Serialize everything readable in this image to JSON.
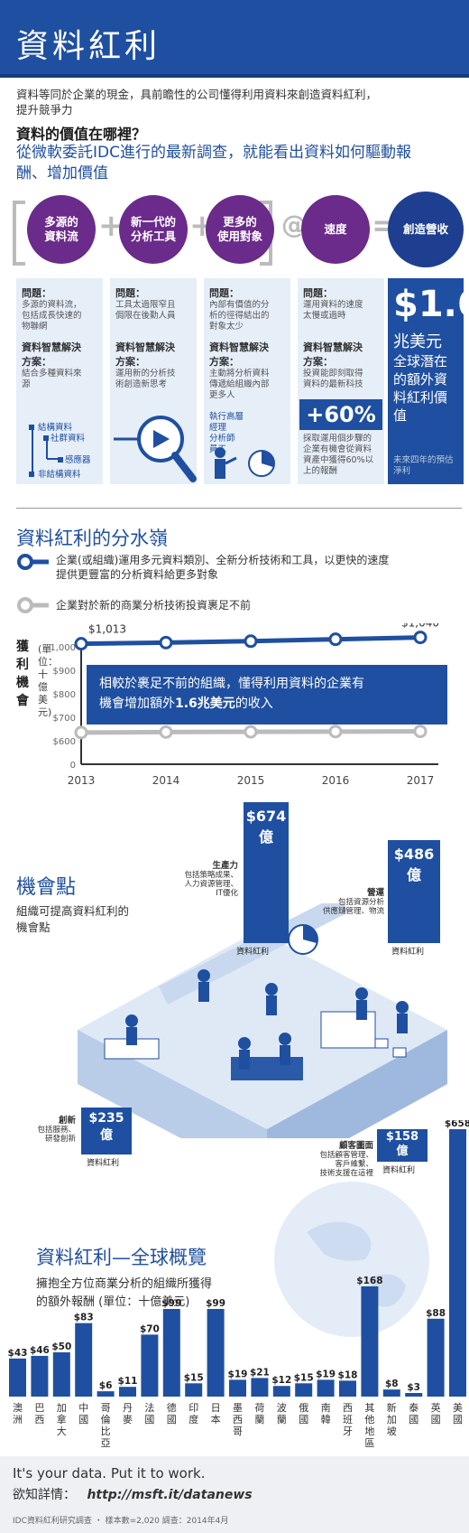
{
  "header": {
    "title": "資料紅利"
  },
  "intro": {
    "line1": "資料等同於企業的現金，具前瞻性的公司懂得利用資料來創造資料紅利，",
    "line2": "提升競爭力",
    "question": "資料的價值在哪裡？",
    "sub1": "從微軟委託IDC進行的最新調查，就能看出資料如何驅動報",
    "sub2": "酬、增加價值"
  },
  "equation": {
    "circles": [
      {
        "l1": "多源的",
        "l2": "資料流"
      },
      {
        "l1": "新一代的",
        "l2": "分析工具"
      },
      {
        "l1": "更多的",
        "l2": "使用對象"
      },
      {
        "l1": "速度",
        "l2": ""
      }
    ],
    "result": "創造營收",
    "plus": "+",
    "at": "@",
    "equals": "="
  },
  "columns": [
    {
      "problem_title": "問題：",
      "problem": [
        "多源的資料流，",
        "包括成長快速的",
        "物聯網"
      ],
      "solution_title1": "資料智慧解決",
      "solution_title2": "方案：",
      "solution": [
        "結合多種資料來",
        "源"
      ]
    },
    {
      "problem_title": "問題：",
      "problem": [
        "工具太過限窄且",
        "侷限在後勤人員"
      ],
      "solution_title1": "資料智慧解決",
      "solution_title2": "方案：",
      "solution": [
        "運用新的分析技",
        "術創造新思考"
      ]
    },
    {
      "problem_title": "問題：",
      "problem": [
        "內部有價值的分",
        "析的徑得結出的",
        "對象太少"
      ],
      "solution_title1": "資料智慧解決",
      "solution_title2": "方案：",
      "solution": [
        "主動將分析資料",
        "傳遞給組織內部",
        "更多人"
      ]
    },
    {
      "problem_title": "問題：",
      "problem": [
        "運用資料的速度",
        "太慢或過時"
      ],
      "solution_title1": "資料智慧解決",
      "solution_title2": "方案：",
      "solution": [
        "投資能即刻取得",
        "資料的最新科技"
      ]
    }
  ],
  "col1_items": [
    "結構資料",
    "社群資料",
    "感應器",
    "非結構資料"
  ],
  "col3_items": [
    "執行高層",
    "經理",
    "分析師",
    "員工"
  ],
  "col4_stat": {
    "value": "+60%",
    "text": [
      "採取運用個步驟的",
      "企業有機會從資料",
      "資產中獲得60%以",
      "上的報酬"
    ]
  },
  "big_stat": {
    "value": "$1.6",
    "unit": "兆美元",
    "desc": [
      "全球潛在",
      "的額外資",
      "料紅利價",
      "值"
    ],
    "note": "未來四年的預估淨利"
  },
  "divide": {
    "title": "資料紅利的分水嶺",
    "legend_dark": [
      "企業(或組織)運用多元資料類別、全新分析技術和工具，以更快的速度",
      "提供更豐富的分析資料給更多對象"
    ],
    "legend_light": "企業對於新的商業分析技術投資裹足不前"
  },
  "chart_data": {
    "type": "line",
    "ylabel": "獲利機會",
    "yunit": "(單位：十億美元)",
    "x": [
      2013,
      2014,
      2015,
      2016,
      2017
    ],
    "yticks": [
      "$1,000",
      "$900",
      "$800",
      "$700",
      "$600",
      "0"
    ],
    "series": [
      {
        "values": [
          1013,
          1018,
          1024,
          1032,
          1040
        ]
      },
      {
        "values": [
          635,
          637,
          638,
          639,
          640
        ]
      }
    ],
    "start_label": "$1,013",
    "end_label": "$1,040",
    "callout_line1": "相較於裹足不前的組織，懂得利用資料的企業有",
    "callout_line2_a": "機會增加額外",
    "callout_line2_b": "1.6兆美元",
    "callout_line2_c": "的收入"
  },
  "opportunity": {
    "title": "機會點",
    "sub": [
      "組織可提高資料紅利的",
      "機會點"
    ],
    "bars": [
      {
        "value": "$674",
        "unit": "億",
        "label": "資料紅利",
        "desc": [
          "生產力",
          "包括策略成果、",
          "人力資源管理、",
          "IT優化"
        ]
      },
      {
        "value": "$486",
        "unit": "億",
        "label": "資料紅利",
        "desc": [
          "營運",
          "包括資源分析",
          "供應鏈管理、物流"
        ]
      },
      {
        "value": "$235",
        "unit": "億",
        "label": "資料紅利",
        "desc": [
          "創新",
          "包括服務、",
          "研發創新"
        ]
      },
      {
        "value": "$158",
        "unit": "億",
        "label": "資料紅利",
        "desc": [
          "顧客圖面",
          "包括顧客管理、",
          "客戶維繫、",
          "技術支援在這裡"
        ]
      }
    ]
  },
  "global": {
    "title": "資料紅利—全球概覽",
    "sub": [
      "擁抱全方位商業分析的組織所獲得",
      "的額外報酬 (單位：十億美元)"
    ],
    "countries": [
      {
        "name": "澳洲",
        "value": "$43",
        "v": 43
      },
      {
        "name": "巴西",
        "value": "$46",
        "v": 46
      },
      {
        "name": "加拿大",
        "value": "$50",
        "v": 50
      },
      {
        "name": "中國",
        "value": "$83",
        "v": 83
      },
      {
        "name": "哥倫比亞",
        "value": "$6",
        "v": 6
      },
      {
        "name": "丹麥",
        "value": "$11",
        "v": 11
      },
      {
        "name": "法國",
        "value": "$70",
        "v": 70
      },
      {
        "name": "德國",
        "value": "$99",
        "v": 99
      },
      {
        "name": "印度",
        "value": "$15",
        "v": 15
      },
      {
        "name": "日本",
        "value": "$99",
        "v": 99
      },
      {
        "name": "墨西哥",
        "value": "$19",
        "v": 19
      },
      {
        "name": "荷蘭",
        "value": "$21",
        "v": 21
      },
      {
        "name": "波蘭",
        "value": "$12",
        "v": 12
      },
      {
        "name": "俄國",
        "value": "$15",
        "v": 15
      },
      {
        "name": "南韓",
        "value": "$19",
        "v": 19
      },
      {
        "name": "西班牙",
        "value": "$18",
        "v": 18
      },
      {
        "name": "其他地區",
        "value": "$168",
        "v": 168
      },
      {
        "name": "新加坡",
        "value": "$8",
        "v": 8
      },
      {
        "name": "泰國",
        "value": "$3",
        "v": 3
      },
      {
        "name": "英國",
        "value": "$88",
        "v": 88
      },
      {
        "name": "美國",
        "value": "$658",
        "v": 658
      }
    ]
  },
  "footer": {
    "slogan": "It's your data.  Put it to work.",
    "more_label": "欲知詳情：",
    "url": "http://msft.it/datanews",
    "source": "IDC資料紅利研究調查 ・ 樣本數=2,020  調查：2014年4月"
  },
  "colors": {
    "primary": "#1f4fa0",
    "purple": "#6a2b8a",
    "light": "#e6eef8",
    "grey": "#bbbbbb"
  }
}
